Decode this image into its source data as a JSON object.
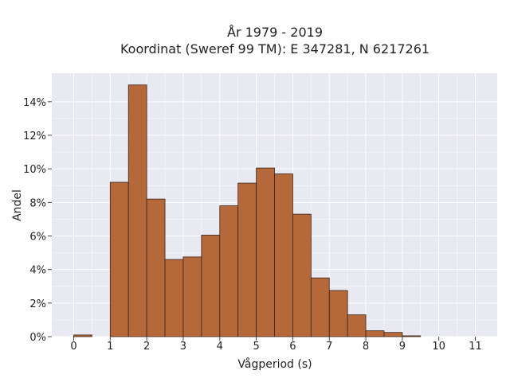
{
  "chart_data": {
    "type": "bar",
    "title_lines": [
      "År 1979 - 2019",
      "Koordinat (Sweref 99 TM): E 347281, N 6217261"
    ],
    "xlabel": "Vågperiod (s)",
    "ylabel": "Andel",
    "x_ticks": [
      "0",
      "1",
      "2",
      "3",
      "4",
      "5",
      "6",
      "7",
      "8",
      "9",
      "10",
      "11"
    ],
    "y_ticks": [
      {
        "value": 0,
        "label": "0%"
      },
      {
        "value": 2,
        "label": "2%"
      },
      {
        "value": 4,
        "label": "4%"
      },
      {
        "value": 6,
        "label": "6%"
      },
      {
        "value": 8,
        "label": "8%"
      },
      {
        "value": 10,
        "label": "10%"
      },
      {
        "value": 12,
        "label": "12%"
      },
      {
        "value": 14,
        "label": "14%"
      }
    ],
    "xlim": [
      -0.6,
      11.6
    ],
    "ylim": [
      0,
      15.7
    ],
    "bin_width": 0.5,
    "bins": [
      {
        "start": 0.0,
        "value": 0.1
      },
      {
        "start": 1.0,
        "value": 9.2
      },
      {
        "start": 1.5,
        "value": 15.0
      },
      {
        "start": 2.0,
        "value": 8.2
      },
      {
        "start": 2.5,
        "value": 4.6
      },
      {
        "start": 3.0,
        "value": 4.75
      },
      {
        "start": 3.5,
        "value": 6.05
      },
      {
        "start": 4.0,
        "value": 7.8
      },
      {
        "start": 4.5,
        "value": 9.15
      },
      {
        "start": 5.0,
        "value": 10.05
      },
      {
        "start": 5.5,
        "value": 9.7
      },
      {
        "start": 6.0,
        "value": 7.3
      },
      {
        "start": 6.5,
        "value": 3.5
      },
      {
        "start": 7.0,
        "value": 2.75
      },
      {
        "start": 7.5,
        "value": 1.3
      },
      {
        "start": 8.0,
        "value": 0.35
      },
      {
        "start": 8.5,
        "value": 0.25
      },
      {
        "start": 9.0,
        "value": 0.05
      }
    ],
    "grid": true,
    "colors": {
      "bar_fill": "#b5693a",
      "bar_edge": "#3a2418",
      "plot_background": "#e8e9f1",
      "grid": "#ffffff"
    }
  }
}
